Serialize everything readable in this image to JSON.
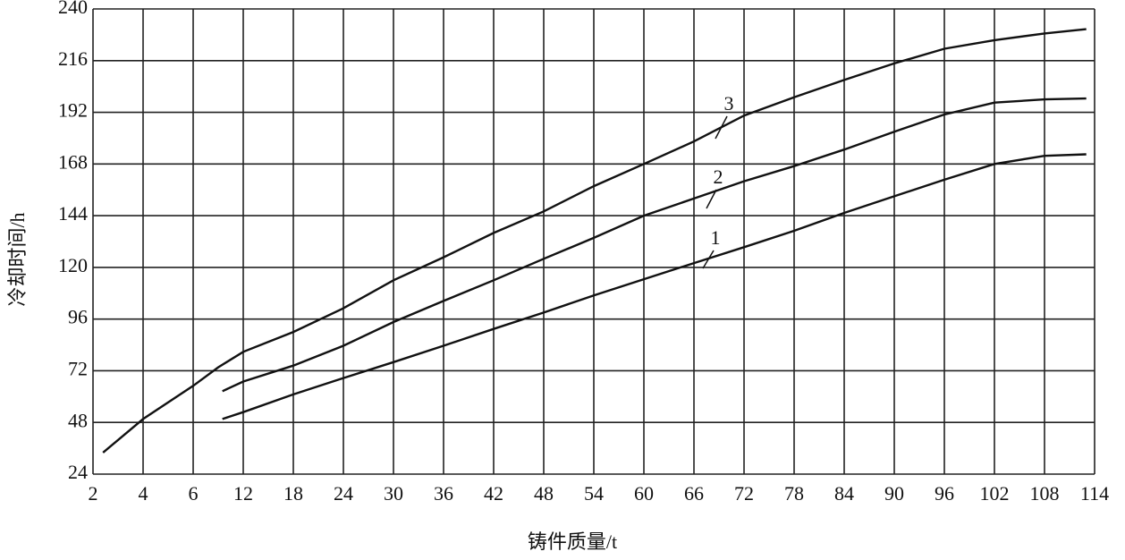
{
  "chart_data": {
    "type": "line",
    "x_label": "铸件质量/t",
    "y_label": "冷却时间/h",
    "xticks": [
      2,
      4,
      6,
      12,
      18,
      24,
      30,
      36,
      42,
      48,
      54,
      60,
      66,
      72,
      78,
      84,
      90,
      96,
      102,
      108,
      114
    ],
    "yticks": [
      24,
      48,
      72,
      96,
      120,
      144,
      168,
      192,
      216,
      240
    ],
    "xlim": [
      2,
      114
    ],
    "ylim": [
      24,
      240
    ],
    "grid": true,
    "series": [
      {
        "name": "1",
        "color": "#111111",
        "x": [
          9.5,
          12,
          18,
          24,
          30,
          36,
          42,
          48,
          54,
          60,
          66,
          72,
          78,
          84,
          90,
          96,
          102,
          108,
          113
        ],
        "values": [
          49.6,
          52.8,
          61,
          68.6,
          76,
          83.6,
          91.4,
          99,
          107,
          114.5,
          122,
          129.4,
          137,
          145.3,
          153,
          160.7,
          168,
          171.8,
          172.5
        ]
      },
      {
        "name": "2",
        "color": "#111111",
        "x": [
          9.5,
          12,
          18,
          24,
          30,
          36,
          42,
          48,
          54,
          60,
          66,
          72,
          78,
          84,
          90,
          96,
          102,
          108,
          113
        ],
        "values": [
          62.5,
          67,
          74.4,
          83.6,
          94.6,
          104.4,
          114,
          124,
          133.7,
          144,
          152,
          160,
          167,
          174.7,
          183,
          191,
          196.5,
          198,
          198.4
        ]
      },
      {
        "name": "3",
        "color": "#111111",
        "x": [
          2.4,
          4,
          6,
          9,
          12,
          18,
          24,
          30,
          36,
          42,
          48,
          54,
          60,
          66,
          72,
          78,
          84,
          90,
          96,
          102,
          108,
          113
        ],
        "values": [
          34,
          49.6,
          65,
          73.6,
          80.8,
          90,
          101,
          114,
          124.7,
          136,
          146,
          157.7,
          168,
          178.5,
          190.5,
          199,
          207,
          214.7,
          221.5,
          225.5,
          228.6,
          230.6
        ]
      }
    ]
  }
}
